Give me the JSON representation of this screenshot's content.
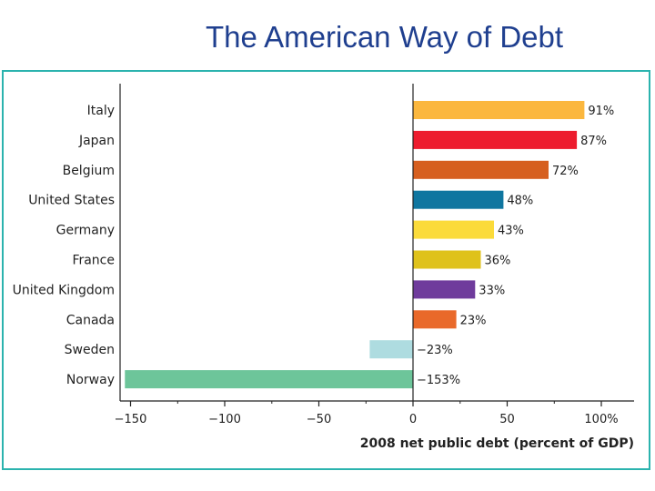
{
  "title": "The American Way of Debt",
  "chart_data": {
    "type": "bar",
    "orientation": "horizontal",
    "categories": [
      "Italy",
      "Japan",
      "Belgium",
      "United States",
      "Germany",
      "France",
      "United Kingdom",
      "Canada",
      "Sweden",
      "Norway"
    ],
    "values": [
      91,
      87,
      72,
      48,
      43,
      36,
      33,
      23,
      -23,
      -153
    ],
    "value_labels": [
      "91%",
      "87%",
      "72%",
      "48%",
      "43%",
      "36%",
      "33%",
      "23%",
      "−23%",
      "−153%"
    ],
    "colors": [
      "#fbb73e",
      "#ed1c2e",
      "#d65f1f",
      "#0f76a0",
      "#fbdb3a",
      "#dfc21b",
      "#6f3b9c",
      "#e9692a",
      "#aedce0",
      "#6dc59a"
    ],
    "xlabel": "2008 net public debt (percent of GDP)",
    "xlim": [
      -153,
      117
    ],
    "xticks": [
      -150,
      -100,
      -50,
      0,
      50,
      100
    ],
    "xtick_labels": [
      "−150",
      "−100",
      "−50",
      "0",
      "50",
      "100%"
    ],
    "grid": false,
    "legend": "none"
  }
}
